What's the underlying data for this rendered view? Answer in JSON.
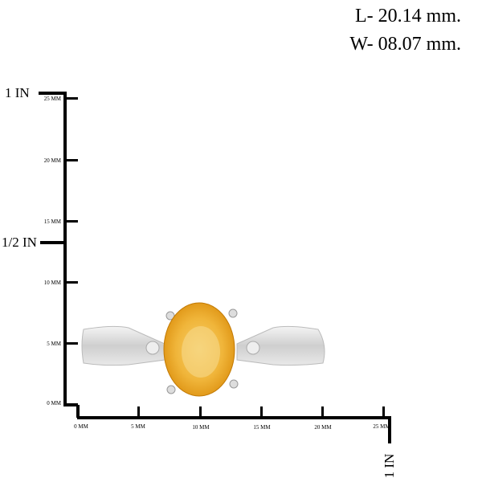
{
  "dimensions": {
    "length": "L- 20.14 mm.",
    "width": "W- 08.07 mm."
  },
  "vertical_ruler": {
    "inch_labels": [
      "1 IN",
      "1/2 IN"
    ],
    "mm_labels": [
      "25 MM",
      "20 MM",
      "15 MM",
      "10 MM",
      "5 MM",
      "0 MM"
    ]
  },
  "horizontal_ruler": {
    "mm_labels": [
      "0 MM",
      "5 MM",
      "10 MM",
      "15 MM",
      "20 MM",
      "25 MM"
    ],
    "inch_label": "1 IN"
  },
  "product": {
    "gem_color": "#f2a516",
    "metal_color": "#d9d9d9"
  }
}
